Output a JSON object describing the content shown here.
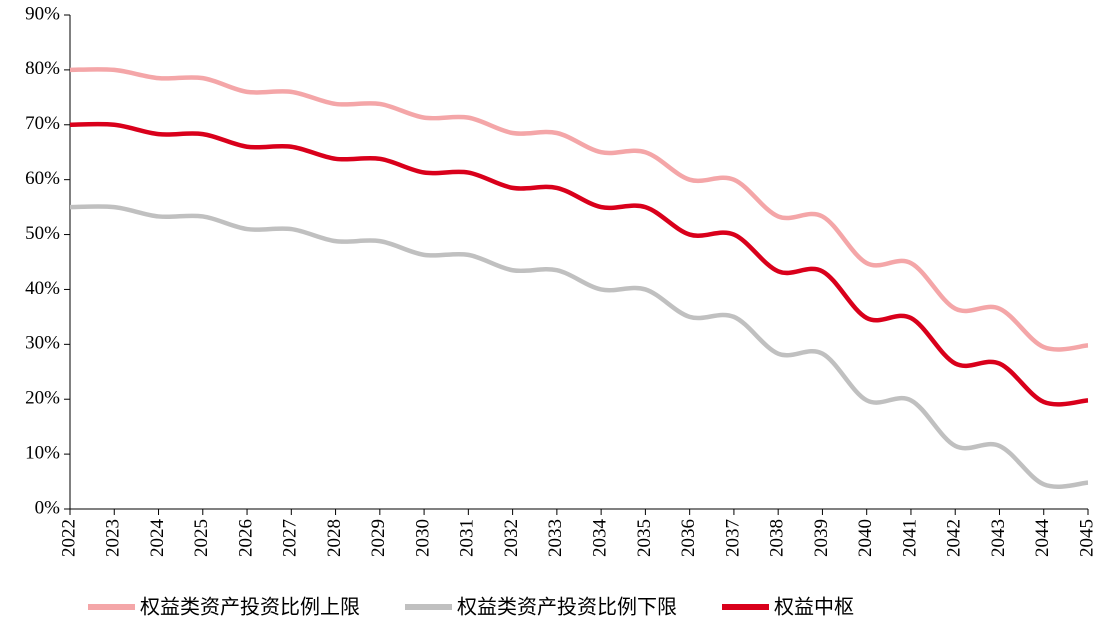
{
  "chart_data": {
    "type": "line",
    "categories": [
      "2022",
      "2023",
      "2024",
      "2025",
      "2026",
      "2027",
      "2028",
      "2029",
      "2030",
      "2031",
      "2032",
      "2033",
      "2034",
      "2035",
      "2036",
      "2037",
      "2038",
      "2039",
      "2040",
      "2041",
      "2042",
      "2043",
      "2044",
      "2045"
    ],
    "ylim": [
      0,
      90
    ],
    "yticks": [
      {
        "value": 0,
        "label": "0%"
      },
      {
        "value": 10,
        "label": "10%"
      },
      {
        "value": 20,
        "label": "20%"
      },
      {
        "value": 30,
        "label": "30%"
      },
      {
        "value": 40,
        "label": "40%"
      },
      {
        "value": 50,
        "label": "50%"
      },
      {
        "value": 60,
        "label": "60%"
      },
      {
        "value": 70,
        "label": "70%"
      },
      {
        "value": 80,
        "label": "80%"
      },
      {
        "value": 90,
        "label": "90%"
      }
    ],
    "grid": false,
    "legend": "bottom",
    "series": [
      {
        "name": "权益类资产投资比例上限",
        "color": "#f4a6a8",
        "values": [
          80,
          80,
          78.5,
          78.5,
          76,
          76,
          73.8,
          73.8,
          71.3,
          71.3,
          68.5,
          68.5,
          65,
          65,
          60,
          60,
          53.3,
          53.3,
          44.8,
          44.8,
          36.5,
          36.5,
          29.5,
          29.8
        ]
      },
      {
        "name": "权益类资产投资比例下限",
        "color": "#c0c0c0",
        "values": [
          55,
          55,
          53.3,
          53.3,
          51,
          51,
          48.8,
          48.8,
          46.3,
          46.3,
          43.5,
          43.5,
          40,
          40,
          35,
          35,
          28.3,
          28.3,
          19.8,
          19.8,
          11.5,
          11.5,
          4.5,
          4.8
        ]
      },
      {
        "name": "权益中枢",
        "color": "#d9001b",
        "values": [
          70,
          70,
          68.3,
          68.3,
          66,
          66,
          63.8,
          63.8,
          61.3,
          61.3,
          58.5,
          58.5,
          55,
          55,
          50,
          50,
          43.3,
          43.3,
          34.8,
          34.8,
          26.5,
          26.5,
          19.5,
          19.8
        ]
      }
    ]
  }
}
